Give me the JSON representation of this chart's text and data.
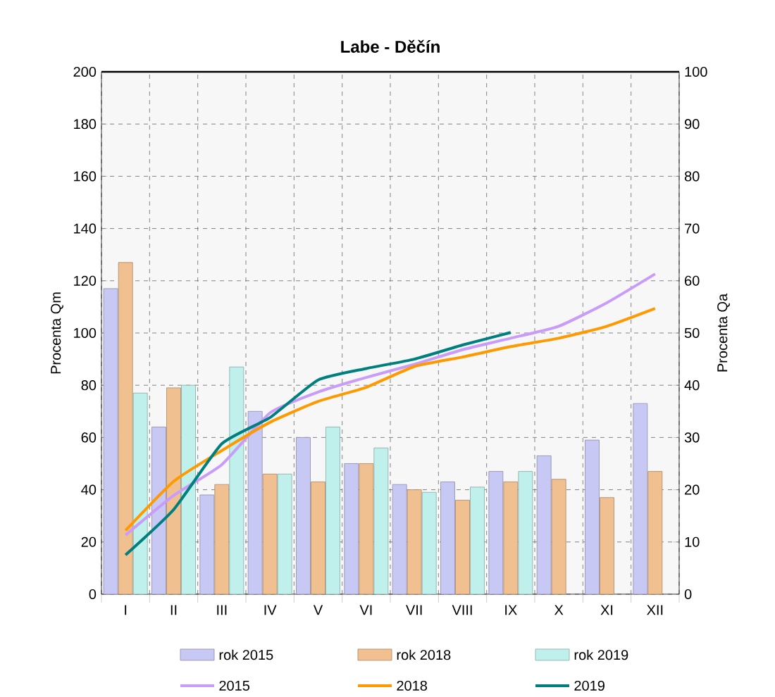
{
  "chart_data": {
    "type": "bar",
    "title": "Labe - Děčín",
    "ylabel": "Procenta Qm",
    "y2label": "Procenta Qa",
    "categories": [
      "I",
      "II",
      "III",
      "IV",
      "V",
      "VI",
      "VII",
      "VIII",
      "IX",
      "X",
      "XI",
      "XII"
    ],
    "series": [
      {
        "name": "rok 2015",
        "color": "#c8c8f4",
        "values": [
          117,
          64,
          38,
          70,
          60,
          50,
          42,
          43,
          47,
          53,
          59,
          73
        ]
      },
      {
        "name": "rok 2018",
        "color": "#f0c090",
        "values": [
          127,
          79,
          42,
          46,
          43,
          50,
          40,
          36,
          43,
          44,
          37,
          47
        ]
      },
      {
        "name": "rok 2019",
        "color": "#c0f0ec",
        "values": [
          77,
          80,
          87,
          46,
          64,
          56,
          39,
          41,
          47,
          null,
          null,
          null
        ]
      },
      {
        "name": "2015",
        "type": "line",
        "axis": "y2",
        "color": "#c89cf8",
        "values": [
          11.3,
          18.9,
          24.8,
          34.7,
          38.7,
          41.5,
          44,
          46.8,
          49,
          51.3,
          55.8,
          61.3
        ]
      },
      {
        "name": "2018",
        "type": "line",
        "axis": "y2",
        "color": "#ff9900",
        "values": [
          12.2,
          21.6,
          27.5,
          32.9,
          36.9,
          39.6,
          43.6,
          45.4,
          47.4,
          49,
          51.3,
          54.7
        ]
      },
      {
        "name": "2019",
        "type": "line",
        "axis": "y2",
        "color": "#007f7f",
        "values": [
          7.5,
          16.2,
          28.8,
          33.8,
          41,
          43.2,
          45,
          47.7,
          50.1,
          null,
          null,
          null
        ]
      }
    ],
    "ylim": [
      0,
      200
    ],
    "yticks": [
      0,
      20,
      40,
      60,
      80,
      100,
      120,
      140,
      160,
      180,
      200
    ],
    "y2lim": [
      0,
      100
    ],
    "y2ticks": [
      0,
      10,
      20,
      30,
      40,
      50,
      60,
      70,
      80,
      90,
      100
    ],
    "grid": true,
    "legend": "bottom"
  }
}
